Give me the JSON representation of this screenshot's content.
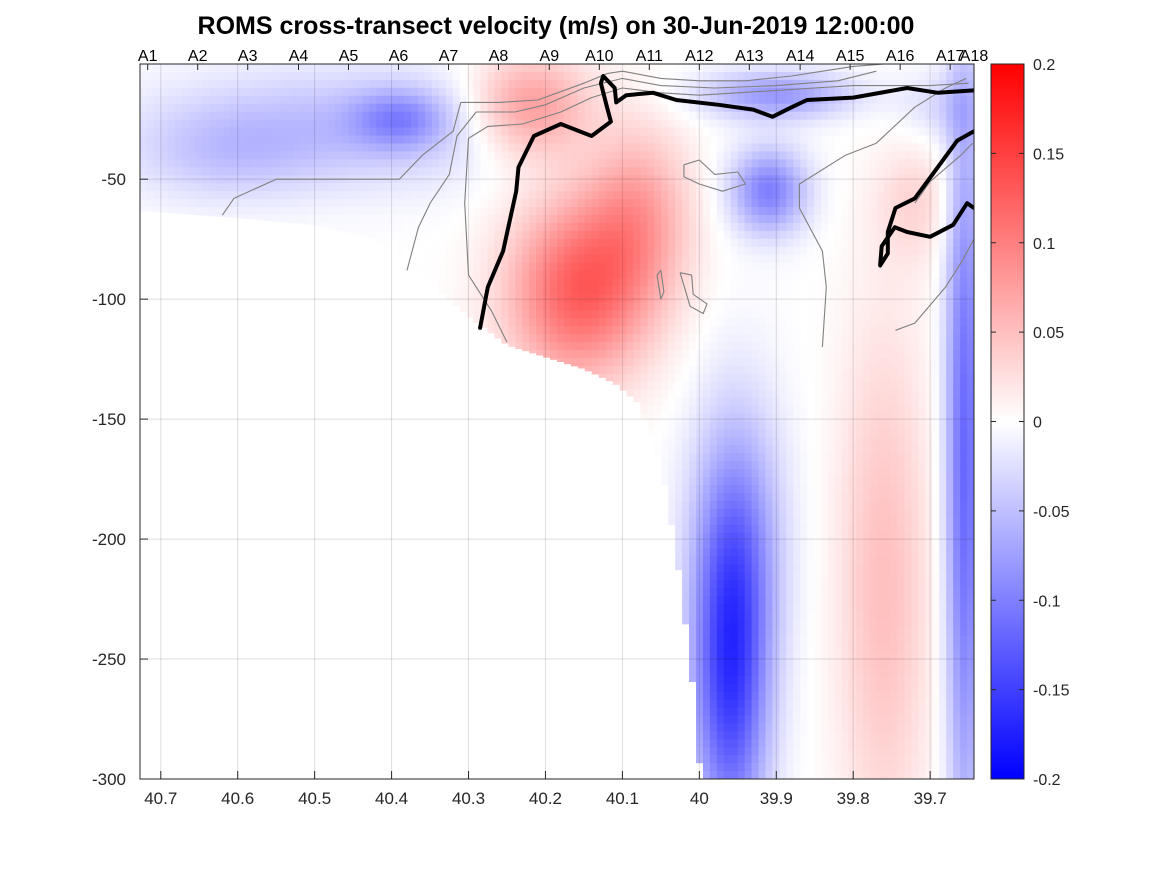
{
  "chart_data": {
    "type": "heatmap",
    "title": "ROMS cross-transect velocity (m/s) on 30-Jun-2019 12:00:00",
    "xlabel": "",
    "ylabel": "",
    "x_ticks": [
      "40.7",
      "40.6",
      "40.5",
      "40.4",
      "40.3",
      "40.2",
      "40.1",
      "40",
      "39.9",
      "39.8",
      "39.7"
    ],
    "x_tick_values": [
      40.7,
      40.6,
      40.5,
      40.4,
      40.3,
      40.2,
      40.1,
      40.0,
      39.9,
      39.8,
      39.7
    ],
    "xlim": [
      40.727,
      39.643
    ],
    "x_reversed": true,
    "y_ticks": [
      "-50",
      "-100",
      "-150",
      "-200",
      "-250",
      "-300"
    ],
    "y_tick_values": [
      -50,
      -100,
      -150,
      -200,
      -250,
      -300
    ],
    "ylim": [
      -300,
      -2
    ],
    "grid": true,
    "station_labels": [
      "A1",
      "A2",
      "A3",
      "A4",
      "A5",
      "A6",
      "A7",
      "A8",
      "A9",
      "A10",
      "A11",
      "A12",
      "A13",
      "A14",
      "A15",
      "A16",
      "A17",
      "A18"
    ],
    "station_lat": [
      40.717,
      40.652,
      40.587,
      40.521,
      40.456,
      40.391,
      40.326,
      40.261,
      40.195,
      40.13,
      40.065,
      40.0,
      39.935,
      39.869,
      39.804,
      39.739,
      39.674,
      39.643
    ],
    "colorbar": {
      "range": [
        -0.2,
        0.2
      ],
      "ticks": [
        "0.2",
        "0.15",
        "0.1",
        "0.05",
        "0",
        "-0.05",
        "-0.1",
        "-0.15",
        "-0.2"
      ],
      "tick_values": [
        0.2,
        0.15,
        0.1,
        0.05,
        0,
        -0.05,
        -0.1,
        -0.15,
        -0.2
      ],
      "colors": {
        "negative": "#0000ff",
        "zero": "#ffffff",
        "positive": "#ff0000"
      }
    },
    "bottom_depth": {
      "lat": [
        40.727,
        40.6,
        40.5,
        40.42,
        40.37,
        40.3,
        40.25,
        40.2,
        40.15,
        40.11,
        40.08,
        40.05,
        40.03,
        40.01,
        39.998,
        39.643
      ],
      "depth": [
        -63,
        -66,
        -69,
        -75,
        -88,
        -107,
        -119,
        -124,
        -129,
        -135,
        -143,
        -168,
        -205,
        -255,
        -300,
        -300
      ]
    },
    "velocity_features": [
      {
        "lat": 40.45,
        "depth": -28,
        "v": -0.05,
        "w_lat": 0.25,
        "w_depth": 25
      },
      {
        "lat": 40.39,
        "depth": -25,
        "v": -0.06,
        "w_lat": 0.06,
        "w_depth": 12
      },
      {
        "lat": 40.62,
        "depth": -40,
        "v": -0.03,
        "w_lat": 0.12,
        "w_depth": 20
      },
      {
        "lat": 40.16,
        "depth": -97,
        "v": 0.12,
        "w_lat": 0.09,
        "w_depth": 38
      },
      {
        "lat": 40.22,
        "depth": -20,
        "v": 0.09,
        "w_lat": 0.08,
        "w_depth": 22
      },
      {
        "lat": 40.08,
        "depth": -65,
        "v": 0.07,
        "w_lat": 0.07,
        "w_depth": 40
      },
      {
        "lat": 39.91,
        "depth": -55,
        "v": -0.1,
        "w_lat": 0.05,
        "w_depth": 18
      },
      {
        "lat": 39.9,
        "depth": -15,
        "v": -0.08,
        "w_lat": 0.1,
        "w_depth": 10
      },
      {
        "lat": 39.96,
        "depth": -260,
        "v": -0.14,
        "w_lat": 0.05,
        "w_depth": 70
      },
      {
        "lat": 39.95,
        "depth": -200,
        "v": -0.07,
        "w_lat": 0.06,
        "w_depth": 60
      },
      {
        "lat": 39.76,
        "depth": -220,
        "v": 0.05,
        "w_lat": 0.06,
        "w_depth": 110
      },
      {
        "lat": 39.655,
        "depth": -170,
        "v": -0.12,
        "w_lat": 0.025,
        "w_depth": 160
      },
      {
        "lat": 39.72,
        "depth": -60,
        "v": 0.03,
        "w_lat": 0.05,
        "w_depth": 25
      },
      {
        "lat": 39.68,
        "depth": -20,
        "v": -0.03,
        "w_lat": 0.06,
        "w_depth": 15
      }
    ],
    "bold_contours": [
      {
        "lat": [
          40.285,
          40.275,
          40.255,
          40.238,
          40.235,
          40.215,
          40.18,
          40.14,
          40.115,
          40.12,
          40.128,
          40.125,
          40.11,
          40.108,
          40.095,
          40.06,
          40.03,
          39.975,
          39.93,
          39.905,
          39.88,
          39.86,
          39.8,
          39.73,
          39.69,
          39.643
        ],
        "depth": [
          -112,
          -95,
          -80,
          -55,
          -45,
          -32,
          -27,
          -32,
          -26,
          -20,
          -10,
          -7,
          -12,
          -18,
          -15,
          -14,
          -17,
          -19,
          -21,
          -24,
          -20,
          -17,
          -16,
          -12,
          -14,
          -13
        ]
      },
      {
        "lat": [
          39.643,
          39.665,
          39.69,
          39.72,
          39.745,
          39.755,
          39.755,
          39.765,
          39.763,
          39.746,
          39.73,
          39.7,
          39.67,
          39.652,
          39.643
        ],
        "depth": [
          -30,
          -34,
          -45,
          -58,
          -62,
          -72,
          -81,
          -86,
          -78,
          -70,
          -72,
          -74,
          -69,
          -60,
          -62
        ]
      }
    ],
    "thin_contours": [
      {
        "lat": [
          40.62,
          40.605,
          40.55,
          40.48,
          40.43,
          40.39,
          40.36,
          40.32,
          40.31,
          40.26,
          40.21,
          40.15,
          40.12,
          40.1,
          40.05,
          40.0,
          39.94,
          39.88,
          39.84,
          39.8,
          39.76
        ],
        "depth": [
          -65,
          -58,
          -50,
          -50,
          -50,
          -50,
          -40,
          -30,
          -18,
          -18,
          -17,
          -10,
          -6,
          -5,
          -8,
          -9,
          -9,
          -7,
          -5,
          -3,
          -2
        ]
      },
      {
        "lat": [
          40.38,
          40.365,
          40.35,
          40.325,
          40.315,
          40.29,
          40.24,
          40.2,
          40.15,
          40.1,
          40.05,
          39.98,
          39.9,
          39.82,
          39.77
        ],
        "depth": [
          -88,
          -70,
          -60,
          -48,
          -32,
          -22,
          -22,
          -19,
          -12,
          -8,
          -11,
          -12,
          -11,
          -9,
          -5
        ]
      },
      {
        "lat": [
          40.25,
          40.27,
          40.3,
          40.305,
          40.3,
          40.275,
          40.23,
          40.18,
          40.14,
          40.1,
          40.05,
          40.0,
          39.95,
          39.9,
          39.85,
          39.8,
          39.75,
          39.7,
          39.65
        ],
        "depth": [
          -118,
          -105,
          -90,
          -60,
          -33,
          -28,
          -27,
          -22,
          -16,
          -12,
          -14,
          -15,
          -14,
          -13,
          -12,
          -11,
          -11,
          -11,
          -10
        ]
      },
      {
        "lat": [
          40.02,
          40.0,
          39.98,
          39.95,
          39.94,
          39.97,
          40.0,
          40.02,
          40.02
        ],
        "depth": [
          -44,
          -42,
          -48,
          -47,
          -52,
          -55,
          -52,
          -49,
          -44
        ]
      },
      {
        "lat": [
          40.025,
          40.01,
          40.008,
          39.99,
          39.995,
          40.012,
          40.025
        ],
        "depth": [
          -89,
          -90,
          -98,
          -102,
          -106,
          -103,
          -89
        ]
      },
      {
        "lat": [
          40.055,
          40.05,
          40.046,
          40.05,
          40.055
        ],
        "depth": [
          -90,
          -88,
          -97,
          -100,
          -90
        ]
      },
      {
        "lat": [
          39.84,
          39.835,
          39.84,
          39.87,
          39.87,
          39.81,
          39.77,
          39.72,
          39.68,
          39.653
        ],
        "depth": [
          -120,
          -95,
          -80,
          -62,
          -52,
          -40,
          -35,
          -20,
          -12,
          -8
        ]
      },
      {
        "lat": [
          39.745,
          39.72,
          39.68,
          39.66,
          39.643
        ],
        "depth": [
          -113,
          -110,
          -95,
          -85,
          -75
        ]
      },
      {
        "lat": [
          39.72,
          39.7,
          39.66,
          39.645
        ],
        "depth": [
          -60,
          -51,
          -40,
          -35
        ]
      }
    ]
  }
}
